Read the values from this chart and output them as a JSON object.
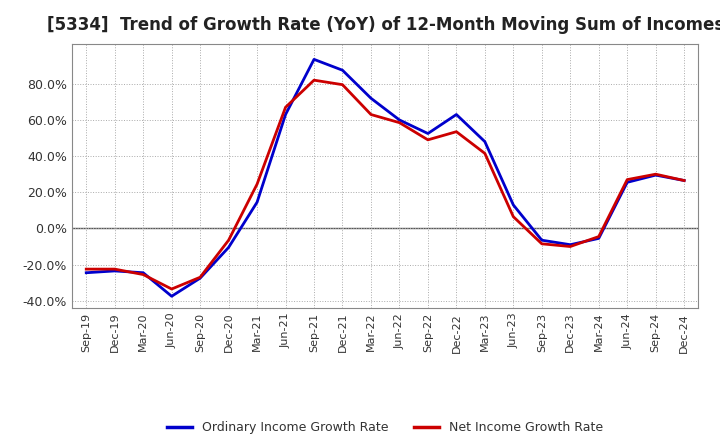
{
  "title": "[5334]  Trend of Growth Rate (YoY) of 12-Month Moving Sum of Incomes",
  "title_fontsize": 12,
  "legend_entries": [
    "Ordinary Income Growth Rate",
    "Net Income Growth Rate"
  ],
  "legend_colors": [
    "#0000cc",
    "#cc0000"
  ],
  "ylim": [
    -0.44,
    1.02
  ],
  "yticks": [
    -0.4,
    -0.2,
    0.0,
    0.2,
    0.4,
    0.6,
    0.8
  ],
  "x_labels": [
    "Sep-19",
    "Dec-19",
    "Mar-20",
    "Jun-20",
    "Sep-20",
    "Dec-20",
    "Mar-21",
    "Jun-21",
    "Sep-21",
    "Dec-21",
    "Mar-22",
    "Jun-22",
    "Sep-22",
    "Dec-22",
    "Mar-23",
    "Jun-23",
    "Sep-23",
    "Dec-23",
    "Mar-24",
    "Jun-24",
    "Sep-24",
    "Dec-24"
  ],
  "ordinary_income": [
    -0.245,
    -0.235,
    -0.245,
    -0.375,
    -0.275,
    -0.105,
    0.145,
    0.63,
    0.935,
    0.875,
    0.72,
    0.6,
    0.525,
    0.63,
    0.48,
    0.13,
    -0.065,
    -0.09,
    -0.055,
    0.255,
    0.295,
    0.265
  ],
  "net_income": [
    -0.225,
    -0.225,
    -0.255,
    -0.335,
    -0.27,
    -0.065,
    0.245,
    0.67,
    0.82,
    0.795,
    0.63,
    0.585,
    0.49,
    0.535,
    0.415,
    0.065,
    -0.085,
    -0.1,
    -0.045,
    0.27,
    0.3,
    0.265
  ],
  "ordinary_color": "#0000cc",
  "net_color": "#cc0000",
  "background_color": "#ffffff",
  "grid_color": "#aaaaaa",
  "spine_color": "#888888",
  "line_width": 2.0
}
